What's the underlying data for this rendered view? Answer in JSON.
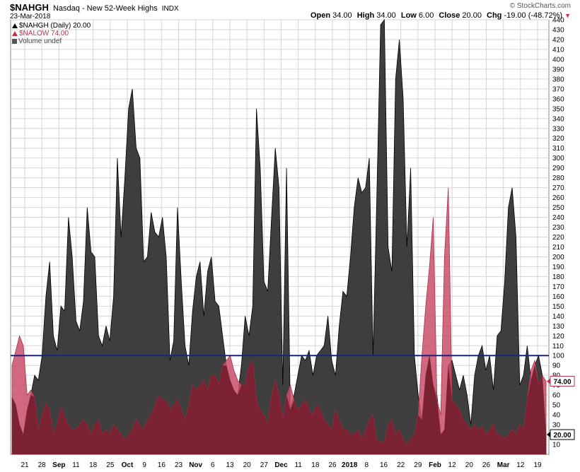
{
  "header": {
    "symbol": "$NAHGH",
    "name": "Nasdaq - New 52-Week Highs",
    "exchange": "INDX",
    "date": "23-Mar-2018",
    "open_label": "Open",
    "open_value": "34.00",
    "high_label": "High",
    "high_value": "34.00",
    "low_label": "Low",
    "low_value": "6.00",
    "close_label": "Close",
    "close_value": "20.00",
    "chg_label": "Chg",
    "chg_value": "-19.00 (-48.72%)",
    "watermark": "© StockCharts.com"
  },
  "legend": [
    {
      "text": "$NAHGH (Daily) 20.00",
      "color": "#000000"
    },
    {
      "text": "$NALOW 74.00",
      "color": "#c0304a"
    },
    {
      "text": "Volume undef",
      "color": "#444444"
    }
  ],
  "colors": {
    "highs_fill": "#3e3e3e",
    "lows_fill": "#c94f6a",
    "overlap_fill": "#7a2232",
    "reference_line": "#1a237e",
    "grid": "#d6d6d6"
  },
  "chart_data": {
    "type": "area",
    "title": "$NAHGH Nasdaq - New 52-Week Highs INDX",
    "ylim": [
      0,
      440
    ],
    "y_ticks": [
      10,
      20,
      30,
      40,
      50,
      60,
      70,
      80,
      90,
      100,
      110,
      120,
      130,
      140,
      150,
      160,
      170,
      180,
      190,
      200,
      210,
      220,
      230,
      240,
      250,
      260,
      270,
      280,
      290,
      300,
      310,
      320,
      330,
      340,
      350,
      360,
      370,
      380,
      390,
      400,
      410,
      420,
      430,
      440
    ],
    "x_ticks": [
      {
        "label": "21",
        "bold": false
      },
      {
        "label": "28",
        "bold": false
      },
      {
        "label": "Sep",
        "bold": true
      },
      {
        "label": "11",
        "bold": false
      },
      {
        "label": "18",
        "bold": false
      },
      {
        "label": "25",
        "bold": false
      },
      {
        "label": "Oct",
        "bold": true
      },
      {
        "label": "9",
        "bold": false
      },
      {
        "label": "16",
        "bold": false
      },
      {
        "label": "23",
        "bold": false
      },
      {
        "label": "Nov",
        "bold": true
      },
      {
        "label": "6",
        "bold": false
      },
      {
        "label": "13",
        "bold": false
      },
      {
        "label": "20",
        "bold": false
      },
      {
        "label": "27",
        "bold": false
      },
      {
        "label": "Dec",
        "bold": true
      },
      {
        "label": "11",
        "bold": false
      },
      {
        "label": "18",
        "bold": false
      },
      {
        "label": "26",
        "bold": false
      },
      {
        "label": "2018",
        "bold": true
      },
      {
        "label": "8",
        "bold": false
      },
      {
        "label": "16",
        "bold": false
      },
      {
        "label": "22",
        "bold": false
      },
      {
        "label": "29",
        "bold": false
      },
      {
        "label": "Feb",
        "bold": true
      },
      {
        "label": "12",
        "bold": false
      },
      {
        "label": "20",
        "bold": false
      },
      {
        "label": "26",
        "bold": false
      },
      {
        "label": "Mar",
        "bold": true
      },
      {
        "label": "12",
        "bold": false
      },
      {
        "label": "19",
        "bold": false
      }
    ],
    "reference_line": 100,
    "last_values": {
      "highs": "20.00",
      "lows": "74.00"
    },
    "series": [
      {
        "name": "$NAHGH",
        "values": [
          58,
          50,
          30,
          20,
          45,
          60,
          80,
          75,
          100,
          160,
          195,
          120,
          105,
          150,
          145,
          240,
          200,
          135,
          125,
          155,
          250,
          205,
          200,
          120,
          110,
          130,
          115,
          160,
          300,
          220,
          280,
          350,
          370,
          310,
          300,
          195,
          200,
          245,
          225,
          220,
          240,
          200,
          95,
          115,
          250,
          175,
          110,
          90,
          145,
          180,
          195,
          140,
          185,
          200,
          155,
          150,
          120,
          90,
          75,
          65,
          60,
          90,
          140,
          120,
          150,
          350,
          290,
          175,
          165,
          240,
          310,
          270,
          70,
          290,
          45,
          60,
          80,
          100,
          95,
          105,
          80,
          100,
          105,
          110,
          140,
          95,
          80,
          130,
          165,
          160,
          200,
          250,
          280,
          265,
          270,
          300,
          100,
          260,
          435,
          440,
          210,
          185,
          380,
          420,
          360,
          210,
          290,
          100,
          60,
          35,
          80,
          100,
          70,
          60,
          20,
          25,
          90,
          95,
          80,
          65,
          80,
          60,
          30,
          80,
          100,
          110,
          85,
          100,
          65,
          120,
          125,
          175,
          250,
          270,
          220,
          70,
          80,
          110,
          75,
          90,
          100,
          80,
          20
        ]
      },
      {
        "name": "$NALOW",
        "values": [
          90,
          105,
          120,
          110,
          60,
          65,
          58,
          25,
          40,
          52,
          45,
          20,
          30,
          48,
          38,
          30,
          25,
          25,
          30,
          35,
          30,
          20,
          30,
          35,
          20,
          25,
          20,
          30,
          25,
          20,
          15,
          20,
          25,
          35,
          30,
          25,
          35,
          40,
          50,
          60,
          55,
          55,
          45,
          50,
          55,
          45,
          35,
          50,
          70,
          65,
          70,
          75,
          65,
          80,
          80,
          70,
          90,
          95,
          100,
          85,
          75,
          70,
          70,
          90,
          95,
          55,
          45,
          40,
          30,
          60,
          75,
          60,
          35,
          60,
          70,
          55,
          45,
          50,
          55,
          45,
          40,
          50,
          45,
          35,
          30,
          25,
          45,
          35,
          25,
          25,
          20,
          20,
          25,
          15,
          25,
          35,
          40,
          15,
          12,
          12,
          30,
          35,
          20,
          25,
          15,
          10,
          15,
          20,
          40,
          100,
          150,
          190,
          240,
          55,
          40,
          200,
          270,
          55,
          50,
          45,
          35,
          30,
          25,
          30,
          25,
          28,
          20,
          25,
          30,
          20,
          20,
          15,
          20,
          25,
          20,
          30,
          25,
          55,
          85,
          95,
          70,
          80,
          74
        ]
      }
    ]
  }
}
